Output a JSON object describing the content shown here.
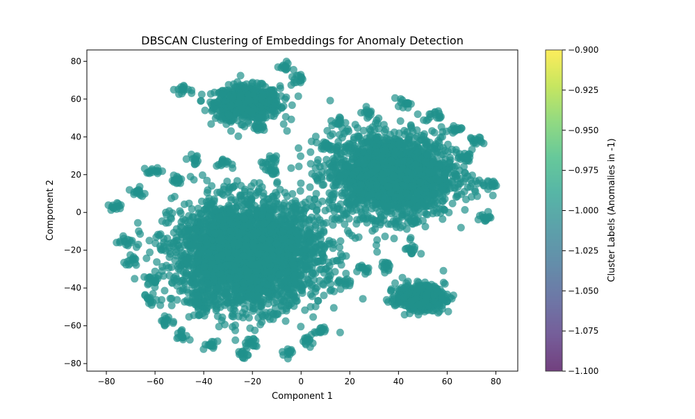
{
  "chart_data": {
    "type": "scatter",
    "title": "DBSCAN Clustering of Embeddings for Anomaly Detection",
    "xlabel": "Component 1",
    "ylabel": "Component 2",
    "xlim": [
      -88,
      89
    ],
    "ylim": [
      -84,
      86
    ],
    "xticks": [
      -80,
      -60,
      -40,
      -20,
      0,
      20,
      40,
      60,
      80
    ],
    "yticks": [
      -80,
      -60,
      -40,
      -20,
      0,
      20,
      40,
      60,
      80
    ],
    "grid": false,
    "point_color": "#21918c",
    "point_alpha": 0.7,
    "clusters": [
      {
        "cx": -22,
        "cy": 58,
        "sx": 12,
        "sy": 8,
        "n": 700,
        "shape": "gaussian"
      },
      {
        "cx": 37,
        "cy": 20,
        "sx": 23,
        "sy": 20,
        "n": 2000,
        "shape": "gaussian"
      },
      {
        "cx": -22,
        "cy": -22,
        "sx": 27,
        "sy": 25,
        "n": 3200,
        "shape": "gaussian"
      },
      {
        "cx": 49,
        "cy": -45,
        "sx": 9,
        "sy": 6,
        "n": 450,
        "shape": "gaussian"
      }
    ],
    "outlier_blobs": [
      [
        -76,
        3
      ],
      [
        -72,
        -15
      ],
      [
        -70,
        -26
      ],
      [
        -61,
        22
      ],
      [
        -67,
        11
      ],
      [
        -62,
        -46
      ],
      [
        -60,
        -35
      ],
      [
        -55,
        -58
      ],
      [
        -49,
        -65
      ],
      [
        -51,
        17
      ],
      [
        -43,
        28
      ],
      [
        -37,
        -70
      ],
      [
        -24,
        -75
      ],
      [
        -21,
        -69
      ],
      [
        -5,
        -74
      ],
      [
        3,
        -68
      ],
      [
        8,
        -62
      ],
      [
        18,
        -38
      ],
      [
        26,
        -30
      ],
      [
        35,
        -29
      ],
      [
        45,
        -20
      ],
      [
        46,
        -5
      ],
      [
        78,
        15
      ],
      [
        76,
        -3
      ],
      [
        72,
        38
      ],
      [
        68,
        29
      ],
      [
        63,
        43
      ],
      [
        -49,
        65
      ],
      [
        -7,
        77
      ],
      [
        -2,
        70
      ],
      [
        -32,
        26
      ],
      [
        -13,
        27
      ],
      [
        -12,
        22
      ],
      [
        10,
        35
      ],
      [
        15,
        48
      ],
      [
        28,
        53
      ],
      [
        42,
        58
      ],
      [
        55,
        51
      ],
      [
        -40,
        -50
      ],
      [
        -43,
        -47
      ],
      [
        -30,
        50
      ],
      [
        -17,
        45
      ]
    ],
    "colorbar": {
      "label": "Cluster Labels (Anomalies in -1)",
      "min": -1.1,
      "max": -0.9,
      "ticks": [
        -0.9,
        -0.925,
        -0.95,
        -0.975,
        -1.0,
        -1.025,
        -1.05,
        -1.075,
        -1.1
      ],
      "tick_labels": [
        "−0.900",
        "−0.925",
        "−0.950",
        "−0.975",
        "−1.000",
        "−1.025",
        "−1.050",
        "−1.075",
        "−1.100"
      ],
      "colors": [
        "#440154",
        "#482878",
        "#3e4a89",
        "#31688e",
        "#26828e",
        "#1f9e89",
        "#35b779",
        "#6ece58",
        "#b5de2b",
        "#fde725"
      ]
    }
  }
}
